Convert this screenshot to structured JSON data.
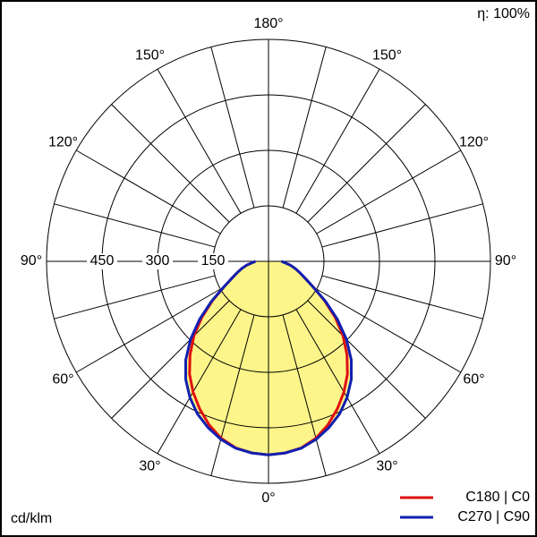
{
  "chart_data": {
    "type": "polar",
    "efficiency_label": "η: 100%",
    "unit_label": "cd/klm",
    "x": [
      0,
      5,
      10,
      15,
      20,
      25,
      30,
      35,
      40,
      45,
      50,
      55,
      60,
      65,
      70,
      75,
      80,
      85,
      90
    ],
    "series": [
      {
        "name": "C180 | C0",
        "color": "#e01010",
        "values": [
          523,
          520,
          512,
          495,
          470,
          440,
          408,
          372,
          330,
          285,
          235,
          185,
          140,
          110,
          90,
          75,
          60,
          45,
          35
        ]
      },
      {
        "name": "C270 | C90",
        "color": "#1020b0",
        "values": [
          523,
          520,
          513,
          498,
          478,
          455,
          425,
          390,
          348,
          298,
          243,
          188,
          140,
          110,
          90,
          75,
          60,
          45,
          35
        ]
      }
    ],
    "fill_color": "#fdf58a",
    "rlim": [
      0,
      600
    ],
    "rticks": [
      150,
      300,
      450
    ],
    "angle_ticks": [
      {
        "value": 0,
        "label": "0°"
      },
      {
        "value": 30,
        "label": "30°"
      },
      {
        "value": 60,
        "label": "60°"
      },
      {
        "value": 90,
        "label": "90°"
      },
      {
        "value": 120,
        "label": "120°"
      },
      {
        "value": 150,
        "label": "150°"
      },
      {
        "value": 180,
        "label": "180°"
      }
    ],
    "grid": true,
    "legend": "lower right"
  }
}
